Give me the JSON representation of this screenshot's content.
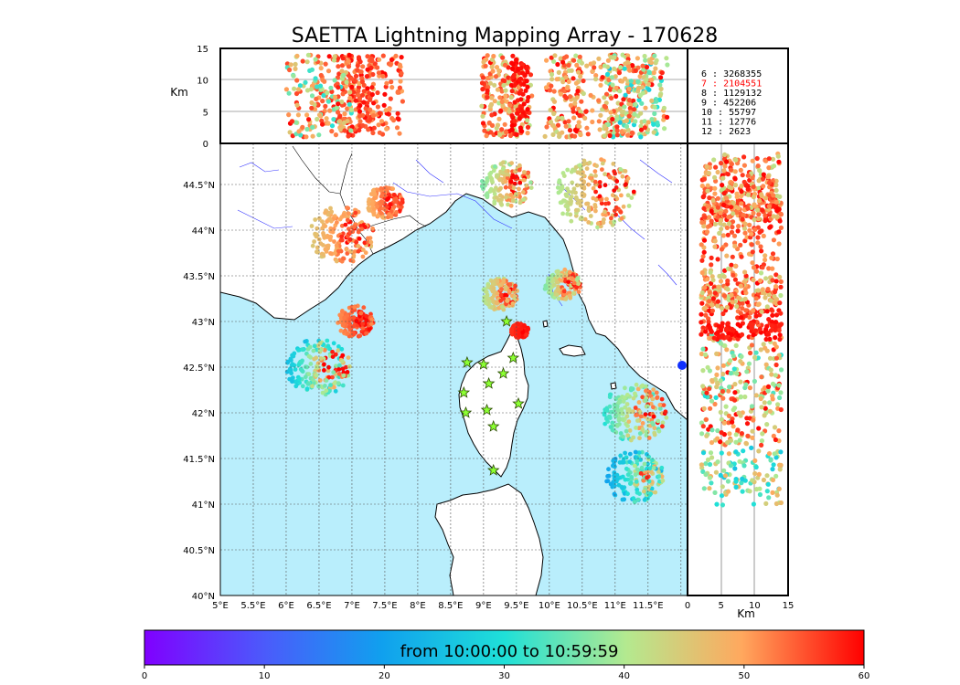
{
  "chart_data": {
    "type": "scatter",
    "title": "SAETTA Lightning Mapping Array - 170628",
    "map": {
      "lon_range": [
        5,
        12.1
      ],
      "lat_range": [
        40,
        44.95
      ],
      "lon_ticks": [
        "5°E",
        "5.5°E",
        "6°E",
        "6.5°E",
        "7°E",
        "7.5°E",
        "8°E",
        "8.5°E",
        "9°E",
        "9.5°E",
        "10°E",
        "10.5°E",
        "11°E",
        "11.5°E"
      ],
      "lat_ticks": [
        "40°N",
        "40.5°N",
        "41°N",
        "41.5°N",
        "42°N",
        "42.5°N",
        "43°N",
        "43.5°N",
        "44°N",
        "44.5°N"
      ],
      "stations": [
        {
          "lon": 8.75,
          "lat": 42.55
        },
        {
          "lon": 9.0,
          "lat": 42.53
        },
        {
          "lon": 9.35,
          "lat": 43.0
        },
        {
          "lon": 9.45,
          "lat": 42.6
        },
        {
          "lon": 9.3,
          "lat": 42.43
        },
        {
          "lon": 9.08,
          "lat": 42.32
        },
        {
          "lon": 8.7,
          "lat": 42.22
        },
        {
          "lon": 9.05,
          "lat": 42.03
        },
        {
          "lon": 8.73,
          "lat": 42.0
        },
        {
          "lon": 9.53,
          "lat": 42.1
        },
        {
          "lon": 9.15,
          "lat": 41.85
        },
        {
          "lon": 9.15,
          "lat": 41.37
        }
      ],
      "storm_clusters": [
        {
          "lon": 6.85,
          "lat": 43.95,
          "size": 0.45,
          "minutes": [
            35,
            60
          ]
        },
        {
          "lon": 7.5,
          "lat": 44.3,
          "size": 0.25,
          "minutes": [
            40,
            60
          ]
        },
        {
          "lon": 7.05,
          "lat": 43.0,
          "size": 0.25,
          "minutes": [
            45,
            60
          ]
        },
        {
          "lon": 6.5,
          "lat": 42.5,
          "size": 0.45,
          "minutes": [
            0,
            60
          ]
        },
        {
          "lon": 9.35,
          "lat": 44.5,
          "size": 0.35,
          "minutes": [
            20,
            60
          ]
        },
        {
          "lon": 10.7,
          "lat": 44.4,
          "size": 0.55,
          "minutes": [
            25,
            60
          ]
        },
        {
          "lon": 9.25,
          "lat": 43.3,
          "size": 0.25,
          "minutes": [
            25,
            60
          ]
        },
        {
          "lon": 9.55,
          "lat": 42.9,
          "size": 0.12,
          "minutes": [
            55,
            60
          ]
        },
        {
          "lon": 10.2,
          "lat": 43.4,
          "size": 0.25,
          "minutes": [
            20,
            60
          ]
        },
        {
          "lon": 11.3,
          "lat": 41.3,
          "size": 0.4,
          "minutes": [
            0,
            50
          ]
        },
        {
          "lon": 11.3,
          "lat": 42.0,
          "size": 0.45,
          "minutes": [
            10,
            60
          ]
        }
      ]
    },
    "altitude_panel": {
      "ylabel": "Km",
      "yticks": [
        "0",
        "5",
        "10",
        "15"
      ],
      "ylim": [
        0,
        15
      ]
    },
    "lat_altitude_panel": {
      "xlabel": "Km",
      "xticks": [
        "0",
        "5",
        "10",
        "15"
      ],
      "xlim": [
        0,
        15
      ]
    },
    "legend": [
      {
        "label": "6 :  3268355",
        "color": "#000000"
      },
      {
        "label": "7 :  2104551",
        "color": "#ff0000"
      },
      {
        "label": "8 :  1129132",
        "color": "#000000"
      },
      {
        "label": "9 :   452206",
        "color": "#000000"
      },
      {
        "label": "10 :    55797",
        "color": "#000000"
      },
      {
        "label": "11 :    12776",
        "color": "#000000"
      },
      {
        "label": "12 :     2623",
        "color": "#000000"
      }
    ],
    "colorbar": {
      "label": "from 10:00:00 to 10:59:59",
      "ticks": [
        "0",
        "10",
        "20",
        "30",
        "40",
        "50",
        "60"
      ],
      "range": [
        0,
        60
      ],
      "colormap": "rainbow"
    },
    "colors": {
      "sea": "#b9eefc",
      "land": "#ffffff",
      "coast": "#000000",
      "rivers": "#3333ff",
      "grid": "#555555"
    }
  }
}
